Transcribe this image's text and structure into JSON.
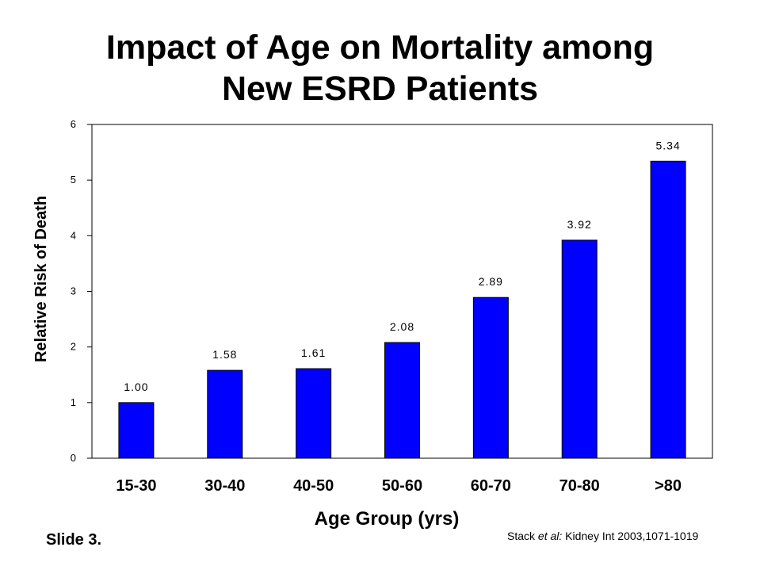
{
  "title_line1": "Impact of Age on Mortality among",
  "title_line2": "New ESRD Patients",
  "slide_label": "Slide 3.",
  "citation": {
    "author": "Stack",
    "etal": "et al:",
    "source": "Kidney Int 2003,1071-1019"
  },
  "colors": {
    "bar": "#0000ff",
    "axis": "#000000",
    "background": "#ffffff"
  },
  "chart_data": {
    "type": "bar",
    "title": "",
    "xlabel": "Age Group (yrs)",
    "ylabel": "Relative Risk of Death",
    "categories": [
      "15-30",
      "30-40",
      "40-50",
      "50-60",
      "60-70",
      "70-80",
      ">80"
    ],
    "values": [
      1.0,
      1.58,
      1.61,
      2.08,
      2.89,
      3.92,
      5.34
    ],
    "data_labels": [
      "1.00",
      "1.58",
      "1.61",
      "2.08",
      "2.89",
      "3.92",
      "5.34"
    ],
    "yticks": [
      0,
      1,
      2,
      3,
      4,
      5,
      6
    ],
    "ylim": [
      0,
      6
    ],
    "grid": false,
    "legend": "none"
  }
}
